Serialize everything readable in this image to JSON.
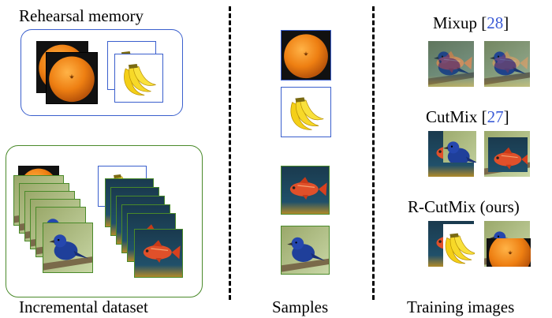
{
  "labels": {
    "rehearsal_memory": "Rehearsal memory",
    "incremental_dataset": "Incremental dataset",
    "samples": "Samples",
    "training_images": "Training images"
  },
  "methods": [
    {
      "name": "Mixup",
      "ref": "28"
    },
    {
      "name": "CutMix",
      "ref": "27"
    },
    {
      "name": "R-CutMix (ours)",
      "ref": ""
    }
  ],
  "colors": {
    "memory_border": "#3a5fcd",
    "dataset_border": "#4a8a2a",
    "citation": "#3b5bd6",
    "orange": "#e9780f",
    "banana": "#f5d21a",
    "bird_blue": "#1f3f9a",
    "fish_red": "#e0502a"
  },
  "icons": [
    "orange-image",
    "banana-image",
    "bird-image",
    "fish-image"
  ]
}
